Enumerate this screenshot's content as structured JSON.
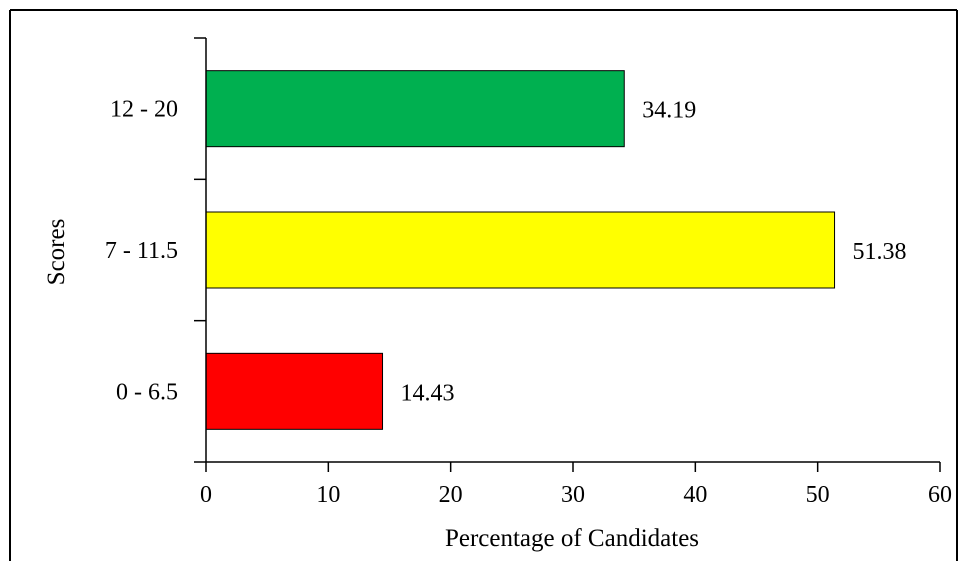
{
  "chart_data": {
    "type": "bar",
    "orientation": "horizontal",
    "categories": [
      "12 - 20",
      "7 - 11.5",
      "0 - 6.5"
    ],
    "values": [
      34.19,
      51.38,
      14.43
    ],
    "value_labels": [
      "34.19",
      "51.38",
      "14.43"
    ],
    "colors": [
      "#00b050",
      "#ffff00",
      "#ff0000"
    ],
    "xlabel": "Percentage of Candidates",
    "ylabel": "Scores",
    "xlim": [
      0,
      60
    ],
    "xticks": [
      0,
      10,
      20,
      30,
      40,
      50,
      60
    ],
    "xtick_labels": [
      "0",
      "10",
      "20",
      "30",
      "40",
      "50",
      "60"
    ],
    "grid": false
  }
}
